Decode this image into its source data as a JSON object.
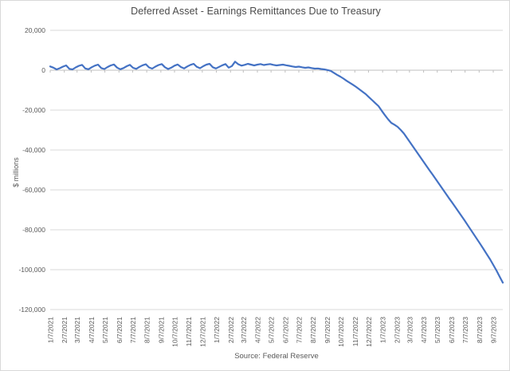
{
  "chart_data": {
    "type": "line",
    "title": "Deferred Asset - Earnings Remittances Due to Treasury",
    "ylabel": "$ millions",
    "source_note": "Source: Federal Reserve",
    "legend": "none",
    "grid": "horizontal-only",
    "frequency": "weekly",
    "x_start_date": "1/7/2021",
    "x_end_date": "9/28/2023",
    "ylim": [
      -120000,
      20000
    ],
    "y_major_unit": 20000,
    "y_tick_labels": [
      "20,000",
      "0",
      "-20,000",
      "-40,000",
      "-60,000",
      "-80,000",
      "-100,000",
      "-120,000"
    ],
    "x_tick_labels": [
      "1/7/2021",
      "2/7/2021",
      "3/7/2021",
      "4/7/2021",
      "5/7/2021",
      "6/7/2021",
      "7/7/2021",
      "8/7/2021",
      "9/7/2021",
      "10/7/2021",
      "11/7/2021",
      "12/7/2021",
      "1/7/2022",
      "2/7/2022",
      "3/7/2022",
      "4/7/2022",
      "5/7/2022",
      "6/7/2022",
      "7/7/2022",
      "8/7/2022",
      "9/7/2022",
      "10/7/2022",
      "11/7/2022",
      "12/7/2022",
      "1/7/2023",
      "2/7/2023",
      "3/7/2023",
      "4/7/2023",
      "5/7/2023",
      "6/7/2023",
      "7/7/2023",
      "8/7/2023",
      "9/7/2023"
    ],
    "line_color": "#4472C4",
    "gridline_color": "#d9d9d9",
    "axis_color": "#bfbfbf",
    "text_color": "#595959",
    "series": [
      {
        "values": [
          1900,
          1300,
          400,
          1000,
          1800,
          2400,
          700,
          400,
          1400,
          2200,
          2700,
          900,
          500,
          1500,
          2300,
          2800,
          1100,
          600,
          1600,
          2400,
          2900,
          1300,
          500,
          1100,
          2000,
          2700,
          1200,
          700,
          1700,
          2500,
          3000,
          1400,
          800,
          1800,
          2600,
          3100,
          1500,
          600,
          1300,
          2300,
          2900,
          1600,
          900,
          1900,
          2700,
          3200,
          1700,
          1000,
          2000,
          2800,
          3200,
          1500,
          900,
          1700,
          2500,
          3100,
          1300,
          2100,
          4300,
          3000,
          2300,
          2700,
          3200,
          2800,
          2400,
          2800,
          3100,
          2600,
          2900,
          3100,
          2700,
          2400,
          2600,
          2800,
          2500,
          2200,
          1900,
          1600,
          1800,
          1500,
          1200,
          1400,
          1100,
          800,
          900,
          600,
          400,
          100,
          -300,
          -1300,
          -2300,
          -3200,
          -4200,
          -5300,
          -6300,
          -7300,
          -8400,
          -9600,
          -10800,
          -12000,
          -13500,
          -15000,
          -16500,
          -18000,
          -20300,
          -22500,
          -24600,
          -26400,
          -27300,
          -28400,
          -30000,
          -31800,
          -34100,
          -36400,
          -38700,
          -41000,
          -43300,
          -45600,
          -47900,
          -50200,
          -52400,
          -54700,
          -57000,
          -59300,
          -61600,
          -63900,
          -66100,
          -68400,
          -70700,
          -73000,
          -75300,
          -77700,
          -80100,
          -82500,
          -84900,
          -87300,
          -89800,
          -92300,
          -94800,
          -97600,
          -100400,
          -103500,
          -106500
        ]
      }
    ]
  }
}
